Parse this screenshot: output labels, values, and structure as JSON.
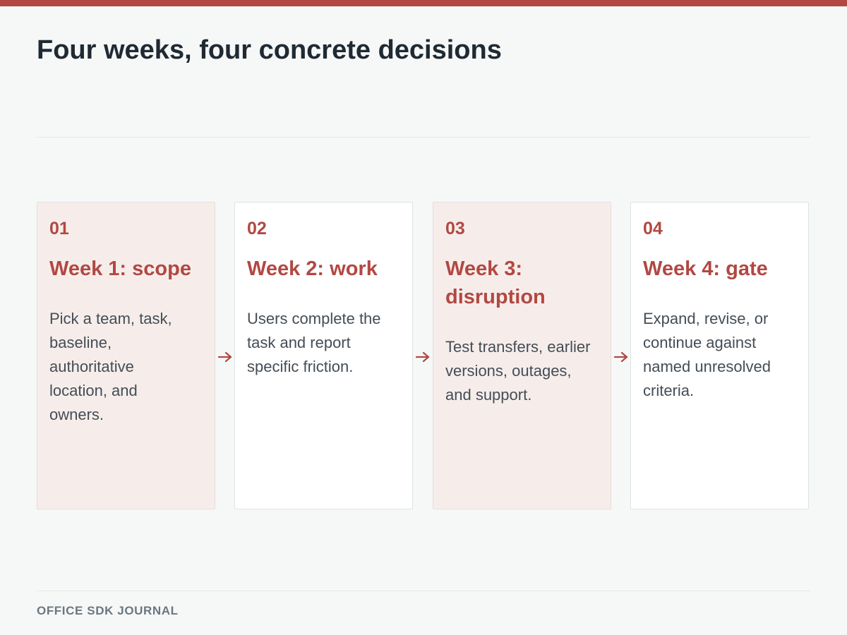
{
  "slide": {
    "title": "Four weeks, four concrete decisions",
    "footer": "OFFICE SDK JOURNAL"
  },
  "colors": {
    "accent": "#b24842",
    "background": "#f6f8f8",
    "card_tint": "#f6edeb",
    "card_plain": "#ffffff",
    "title_text": "#1f2a33",
    "body_text": "#444d55",
    "footer_text": "#6b777f"
  },
  "steps": [
    {
      "number": "01",
      "title": "Week 1: scope",
      "body": "Pick a team, task, baseline, authoritative location, and owners."
    },
    {
      "number": "02",
      "title": "Week 2: work",
      "body": "Users complete the task and report specific friction."
    },
    {
      "number": "03",
      "title": "Week 3: disruption",
      "body": "Test transfers, earlier versions, outages, and support."
    },
    {
      "number": "04",
      "title": "Week 4: gate",
      "body": "Expand, revise, or continue against named unresolved criteria."
    }
  ],
  "icons": {
    "connector": "arrow-right-icon"
  }
}
